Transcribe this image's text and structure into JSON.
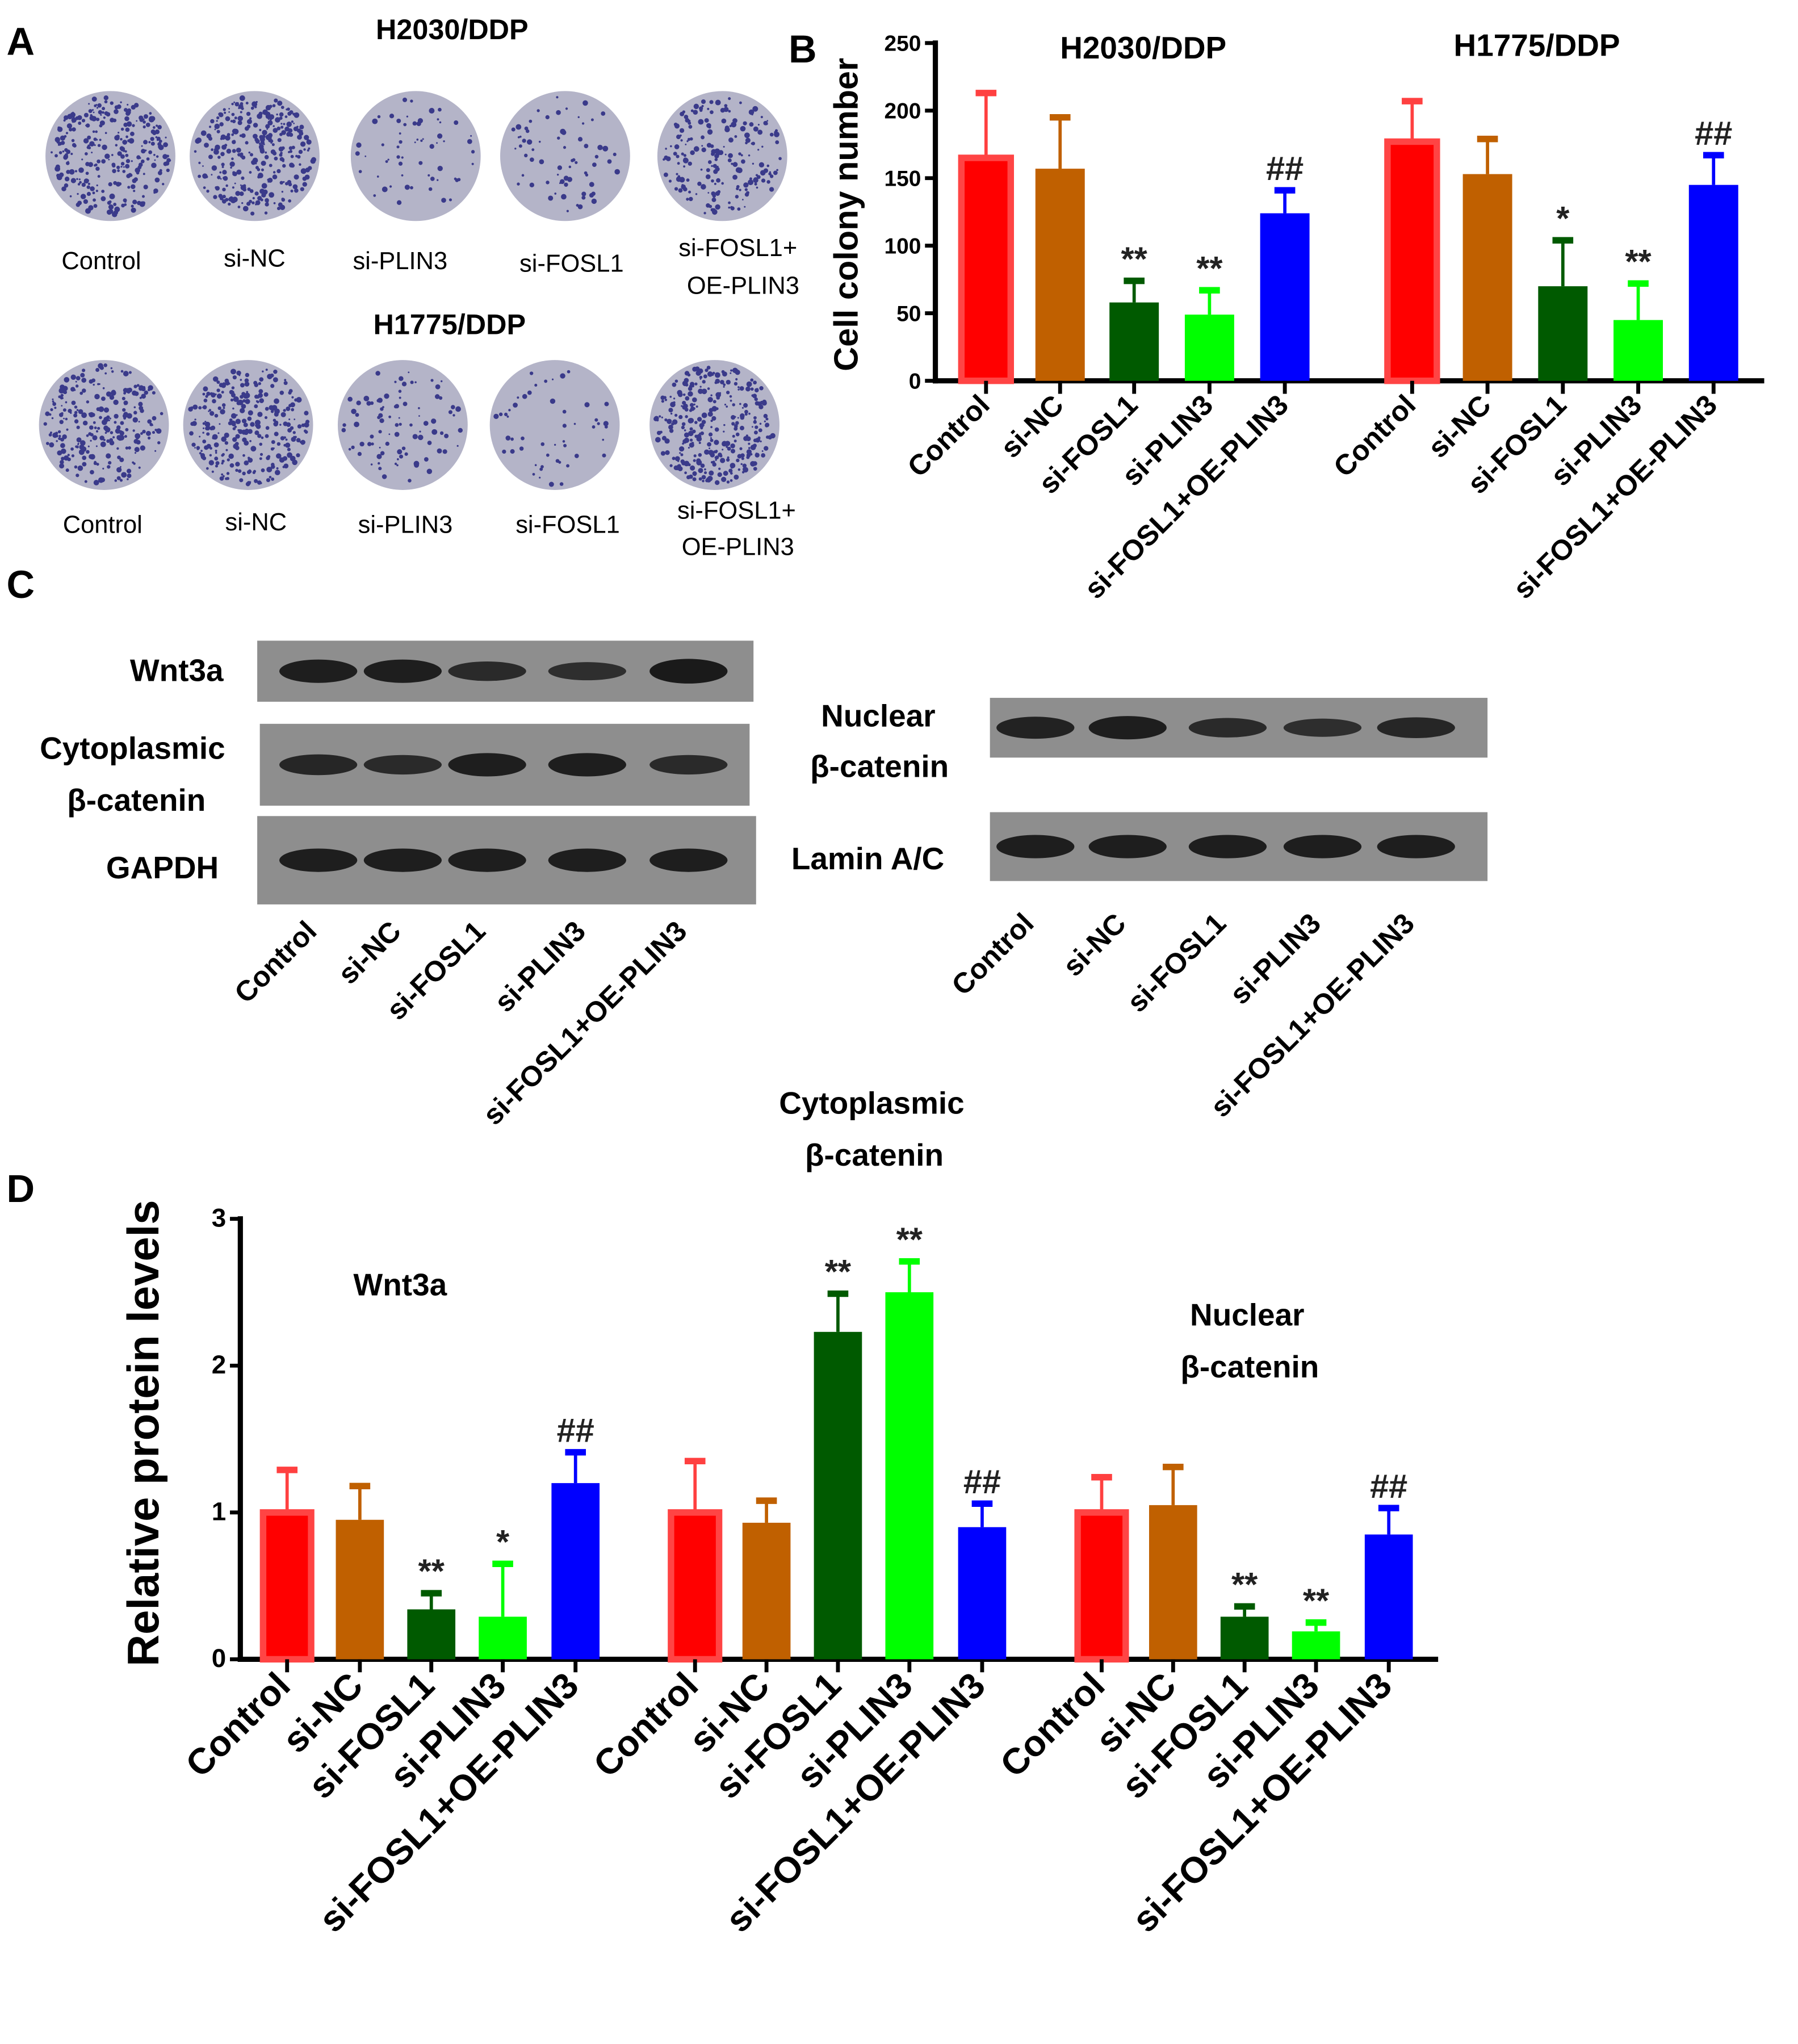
{
  "colors": {
    "Control": "#ff0000",
    "si-NC": "#c06000",
    "si-FOSL1": "#005a00",
    "si-PLIN3": "#00ff00",
    "si-FOSL1+OE-PLIN3": "#0000ff",
    "plate_stain": "#3a3a8a"
  },
  "panelA": {
    "letter": "A",
    "rows": [
      {
        "title": "H2030/DDP",
        "labels": [
          "Control",
          "si-NC",
          "si-PLIN3",
          "si-FOSL1",
          "si-FOSL1+",
          "OE-PLIN3"
        ]
      },
      {
        "title": "H1775/DDP",
        "labels": [
          "Control",
          "si-NC",
          "si-PLIN3",
          "si-FOSL1",
          "si-FOSL1+",
          "OE-PLIN3"
        ]
      }
    ]
  },
  "panelC": {
    "letter": "C",
    "left_labels": {
      "wnt": "Wnt3a",
      "cyto1": "Cytoplasmic",
      "cyto2": "β-catenin",
      "gapdh": "GAPDH"
    },
    "right_labels": {
      "nuc1": "Nuclear",
      "nuc2": "β-catenin",
      "lamin": "Lamin A/C"
    },
    "lanes": [
      "Control",
      "si-NC",
      "si-FOSL1",
      "si-PLIN3",
      "si-FOSL1+OE-PLIN3"
    ]
  },
  "chart_data": [
    {
      "panel": "B",
      "type": "bar",
      "ylabel": "Cell colony number",
      "ylim": [
        0,
        250
      ],
      "yticks": [
        "0",
        "50",
        "100",
        "150",
        "200",
        "250"
      ],
      "categories": [
        "Control",
        "si-NC",
        "si-FOSL1",
        "si-PLIN3",
        "si-FOSL1+OE-PLIN3"
      ],
      "groups": [
        {
          "title": "H2030/DDP",
          "values": [
            165,
            157,
            58,
            49,
            124
          ],
          "error_upper": [
            213,
            195,
            74,
            67,
            141
          ],
          "annotations": [
            "",
            "",
            "**",
            "**",
            "##"
          ]
        },
        {
          "title": "H1775/DDP",
          "values": [
            177,
            153,
            70,
            45,
            145
          ],
          "error_upper": [
            207,
            179,
            104,
            72,
            167
          ],
          "annotations": [
            "",
            "",
            "*",
            "**",
            "##"
          ]
        }
      ]
    },
    {
      "panel": "D",
      "type": "bar",
      "ylabel": "Relative protein levels",
      "ylim": [
        0,
        3
      ],
      "yticks": [
        "0",
        "1",
        "2",
        "3"
      ],
      "categories": [
        "Control",
        "si-NC",
        "si-FOSL1",
        "si-PLIN3",
        "si-FOSL1+OE-PLIN3"
      ],
      "groups": [
        {
          "title": "Wnt3a",
          "title2": "",
          "values": [
            1.0,
            0.95,
            0.34,
            0.29,
            1.2
          ],
          "error_upper": [
            1.29,
            1.18,
            0.45,
            0.65,
            1.41
          ],
          "annotations": [
            "",
            "",
            "**",
            "*",
            "##"
          ]
        },
        {
          "title": "Cytoplasmic",
          "title2": "β-catenin",
          "values": [
            1.0,
            0.93,
            2.23,
            2.5,
            0.9
          ],
          "error_upper": [
            1.35,
            1.08,
            2.49,
            2.71,
            1.06
          ],
          "annotations": [
            "",
            "",
            "**",
            "**",
            "##"
          ]
        },
        {
          "title": "Nuclear",
          "title2": "β-catenin",
          "values": [
            1.0,
            1.05,
            0.29,
            0.19,
            0.85
          ],
          "error_upper": [
            1.24,
            1.31,
            0.36,
            0.25,
            1.03
          ],
          "annotations": [
            "",
            "",
            "**",
            "**",
            "##"
          ]
        }
      ]
    }
  ]
}
